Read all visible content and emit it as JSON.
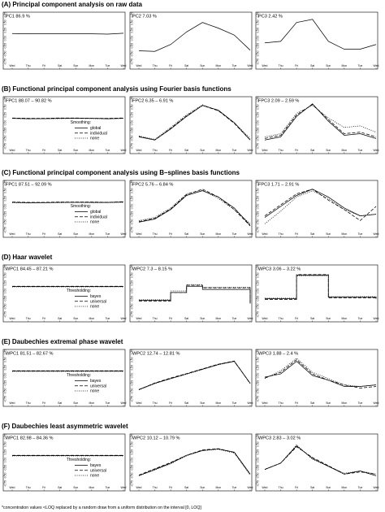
{
  "footnote": "*concentration values <LOQ replaced by a random draw from a uniform distribution on the interval [0, LOQ]",
  "yticks": [
    "0.75",
    "0.50",
    "0.25",
    "0.00",
    "-0.25",
    "-0.50",
    "-0.75"
  ],
  "xticks": [
    "Wed",
    "Thu",
    "Fri",
    "Sat",
    "Sun",
    "Mon",
    "Tue",
    "Wed"
  ],
  "chart_data": [
    {
      "section": "(A) Principal component analysis on raw data",
      "legend": null,
      "panels": [
        {
          "title": "PC1 86.9 %",
          "type": "line",
          "series": [
            {
              "values": [
                0.15,
                0.14,
                0.14,
                0.14,
                0.14,
                0.14,
                0.13,
                0.16
              ]
            }
          ]
        },
        {
          "title": "PC2 7.03 %",
          "type": "line",
          "series": [
            {
              "values": [
                -0.4,
                -0.42,
                -0.2,
                0.2,
                0.5,
                0.32,
                0.1,
                -0.38
              ]
            }
          ]
        },
        {
          "title": "PC3 2.42 %",
          "type": "line",
          "series": [
            {
              "values": [
                -0.15,
                -0.1,
                0.5,
                0.6,
                -0.1,
                -0.35,
                -0.35,
                -0.2
              ]
            }
          ]
        }
      ]
    },
    {
      "section": "(B) Functional principal component analysis using Fourier basis functions",
      "legend": {
        "title": "Smoothing:",
        "entries": [
          "global",
          "individual",
          "none"
        ]
      },
      "panels": [
        {
          "title": "FPC1 88.07 – 90.82 %",
          "type": "line",
          "series": [
            {
              "values": [
                0.14,
                0.13,
                0.13,
                0.14,
                0.14,
                0.14,
                0.13,
                0.14
              ]
            },
            {
              "values": [
                0.15,
                0.14,
                0.14,
                0.15,
                0.15,
                0.14,
                0.14,
                0.15
              ]
            },
            {
              "values": [
                0.14,
                0.12,
                0.13,
                0.13,
                0.14,
                0.13,
                0.12,
                0.14
              ]
            }
          ]
        },
        {
          "title": "FPC2 6.35 – 6.91 %",
          "type": "line",
          "series": [
            {
              "values": [
                -0.45,
                -0.55,
                -0.2,
                0.2,
                0.55,
                0.4,
                0.0,
                -0.55
              ]
            },
            {
              "values": [
                -0.44,
                -0.55,
                -0.18,
                0.22,
                0.55,
                0.38,
                -0.02,
                -0.55
              ]
            },
            {
              "values": [
                -0.42,
                -0.53,
                -0.15,
                0.25,
                0.57,
                0.38,
                0.0,
                -0.5
              ]
            }
          ]
        },
        {
          "title": "FPC3 2.09 – 2.59 %",
          "type": "line",
          "series": [
            {
              "values": [
                -0.55,
                -0.45,
                0.2,
                0.6,
                0.05,
                -0.4,
                -0.35,
                -0.5
              ]
            },
            {
              "values": [
                -0.5,
                -0.4,
                0.25,
                0.58,
                0.1,
                -0.35,
                -0.3,
                -0.45
              ]
            },
            {
              "values": [
                -0.45,
                -0.35,
                0.3,
                0.55,
                0.15,
                -0.15,
                -0.1,
                -0.3
              ]
            }
          ]
        }
      ]
    },
    {
      "section": "(C) Functional principal component analysis using B–splines basis functions",
      "legend": {
        "title": "Smoothing:",
        "entries": [
          "global",
          "individual",
          "none"
        ]
      },
      "panels": [
        {
          "title": "FPC1 87.51 – 92.09 %",
          "type": "line",
          "series": [
            {
              "values": [
                0.13,
                0.12,
                0.12,
                0.13,
                0.13,
                0.13,
                0.13,
                0.14
              ]
            },
            {
              "values": [
                0.14,
                0.13,
                0.13,
                0.14,
                0.14,
                0.14,
                0.13,
                0.15
              ]
            },
            {
              "values": [
                0.12,
                0.11,
                0.12,
                0.12,
                0.13,
                0.12,
                0.12,
                0.13
              ]
            }
          ]
        },
        {
          "title": "FPC2 5.76 – 6.84 %",
          "type": "line",
          "series": [
            {
              "values": [
                -0.5,
                -0.4,
                -0.1,
                0.35,
                0.5,
                0.3,
                -0.05,
                -0.6
              ]
            },
            {
              "values": [
                -0.48,
                -0.38,
                -0.08,
                0.38,
                0.55,
                0.3,
                -0.1,
                -0.62
              ]
            },
            {
              "values": [
                -0.45,
                -0.35,
                -0.05,
                0.4,
                0.52,
                0.25,
                -0.1,
                -0.55
              ]
            }
          ]
        },
        {
          "title": "FPC3 1.71 – 2.91 %",
          "type": "line",
          "series": [
            {
              "values": [
                -0.35,
                0.0,
                0.35,
                0.55,
                0.3,
                -0.05,
                -0.3,
                -0.25
              ]
            },
            {
              "values": [
                -0.3,
                0.05,
                0.4,
                0.55,
                0.2,
                -0.1,
                -0.45,
                0.0
              ]
            },
            {
              "values": [
                -0.55,
                -0.15,
                0.3,
                0.5,
                0.25,
                -0.1,
                -0.3,
                -0.25
              ]
            }
          ]
        }
      ]
    },
    {
      "section": "(D) Haar wavelet",
      "legend": {
        "title": "Thresholding:",
        "entries": [
          "bayes",
          "universal",
          "none"
        ]
      },
      "panels": [
        {
          "title": "WPC1 84.45 – 87.21 %",
          "type": "step",
          "series": [
            {
              "values": [
                0.14,
                0.14,
                0.14,
                0.14,
                0.14,
                0.14,
                0.14,
                0.14
              ]
            },
            {
              "values": [
                0.15,
                0.15,
                0.15,
                0.15,
                0.15,
                0.15,
                0.15,
                0.15
              ]
            },
            {
              "values": [
                0.13,
                0.13,
                0.13,
                0.13,
                0.13,
                0.13,
                0.13,
                0.13
              ]
            }
          ]
        },
        {
          "title": "WPC2 7.3 – 8.15 %",
          "type": "step",
          "series": [
            {
              "values": [
                -0.3,
                -0.3,
                -0.05,
                0.15,
                0.05,
                0.05,
                0.05,
                -0.4
              ]
            },
            {
              "values": [
                -0.32,
                -0.32,
                -0.05,
                0.18,
                0.1,
                0.1,
                0.1,
                -0.4
              ]
            },
            {
              "values": [
                -0.28,
                -0.28,
                0.0,
                0.2,
                0.12,
                0.12,
                0.12,
                -0.35
              ]
            }
          ]
        },
        {
          "title": "WPC3 3.06 – 3.22 %",
          "type": "step",
          "series": [
            {
              "values": [
                -0.25,
                -0.25,
                0.5,
                0.5,
                -0.2,
                -0.2,
                -0.2,
                -0.25
              ]
            },
            {
              "values": [
                -0.27,
                -0.27,
                0.52,
                0.52,
                -0.22,
                -0.22,
                -0.22,
                -0.27
              ]
            },
            {
              "values": [
                -0.23,
                -0.23,
                0.48,
                0.48,
                -0.18,
                -0.18,
                -0.18,
                -0.23
              ]
            }
          ]
        }
      ]
    },
    {
      "section": "(E) Daubechies extremal phase wavelet",
      "legend": {
        "title": "Thresholding:",
        "entries": [
          "bayes",
          "universal",
          "none"
        ]
      },
      "panels": [
        {
          "title": "WPC1 81.51 – 82.67 %",
          "type": "line",
          "series": [
            {
              "values": [
                0.14,
                0.14,
                0.14,
                0.14,
                0.14,
                0.14,
                0.14,
                0.14
              ]
            },
            {
              "values": [
                0.15,
                0.15,
                0.15,
                0.15,
                0.15,
                0.15,
                0.15,
                0.15
              ]
            },
            {
              "values": [
                0.13,
                0.13,
                0.13,
                0.13,
                0.13,
                0.13,
                0.13,
                0.13
              ]
            }
          ]
        },
        {
          "title": "WPC2 12.74 – 12.81 %",
          "type": "line",
          "series": [
            {
              "values": [
                -0.45,
                -0.25,
                -0.1,
                0.05,
                0.2,
                0.35,
                0.45,
                -0.25
              ]
            },
            {
              "values": [
                -0.45,
                -0.24,
                -0.08,
                0.06,
                0.21,
                0.36,
                0.46,
                -0.26
              ]
            },
            {
              "values": [
                -0.46,
                -0.26,
                -0.1,
                0.04,
                0.19,
                0.34,
                0.45,
                -0.24
              ]
            }
          ]
        },
        {
          "title": "WPC3 1.88 – 2.4 %",
          "type": "line",
          "series": [
            {
              "values": [
                -0.05,
                0.05,
                0.45,
                0.0,
                -0.15,
                -0.35,
                -0.35,
                -0.3
              ]
            },
            {
              "values": [
                -0.08,
                0.1,
                0.5,
                0.05,
                -0.15,
                -0.3,
                -0.4,
                -0.35
              ]
            },
            {
              "values": [
                -0.1,
                0.15,
                0.55,
                0.1,
                -0.1,
                -0.3,
                -0.35,
                -0.3
              ]
            }
          ]
        }
      ]
    },
    {
      "section": "(F) Daubechies least asymmetric wavelet",
      "legend": {
        "title": "Thresholding:",
        "entries": [
          "bayes",
          "universal",
          "none"
        ]
      },
      "panels": [
        {
          "title": "WPC1 82.98 – 84.36 %",
          "type": "line",
          "series": [
            {
              "values": [
                0.14,
                0.14,
                0.14,
                0.14,
                0.14,
                0.14,
                0.14,
                0.14
              ]
            },
            {
              "values": [
                0.15,
                0.15,
                0.15,
                0.15,
                0.15,
                0.15,
                0.15,
                0.15
              ]
            },
            {
              "values": [
                0.13,
                0.13,
                0.13,
                0.13,
                0.13,
                0.13,
                0.13,
                0.13
              ]
            }
          ]
        },
        {
          "title": "WPC2 10.12 – 10.79 %",
          "type": "line",
          "series": [
            {
              "values": [
                -0.5,
                -0.3,
                -0.1,
                0.15,
                0.3,
                0.35,
                0.25,
                -0.45
              ]
            },
            {
              "values": [
                -0.48,
                -0.28,
                -0.08,
                0.15,
                0.32,
                0.36,
                0.24,
                -0.45
              ]
            },
            {
              "values": [
                -0.5,
                -0.32,
                -0.12,
                0.13,
                0.3,
                0.34,
                0.22,
                -0.48
              ]
            }
          ]
        },
        {
          "title": "WPC3 2.83 – 3.02 %",
          "type": "line",
          "series": [
            {
              "values": [
                -0.3,
                -0.1,
                0.45,
                0.05,
                -0.2,
                -0.45,
                -0.35,
                -0.5
              ]
            },
            {
              "values": [
                -0.3,
                -0.1,
                0.42,
                0.08,
                -0.18,
                -0.45,
                -0.38,
                -0.45
              ]
            },
            {
              "values": [
                -0.3,
                -0.1,
                0.48,
                0.02,
                -0.2,
                -0.42,
                -0.35,
                -0.45
              ]
            }
          ]
        }
      ]
    }
  ]
}
